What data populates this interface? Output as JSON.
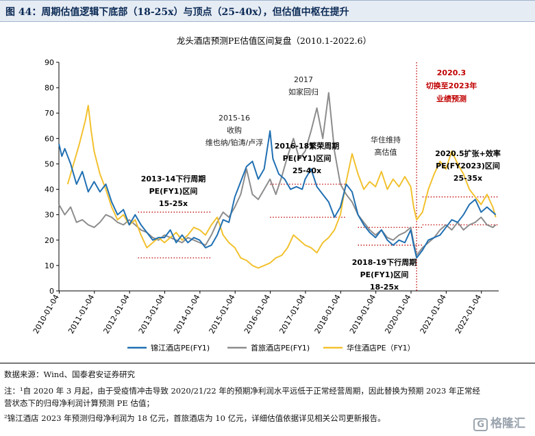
{
  "figure_title": "图 44：周期估值逻辑下底部（18-25x）与顶点（25-40x），但估值中枢在提升",
  "chart_data": {
    "type": "line",
    "title": "龙头酒店预测PE估值区间复盘（2010.1-2022.6）",
    "xlabel": "",
    "ylabel": "",
    "ylim": [
      0,
      90
    ],
    "yticks": [
      0,
      10,
      20,
      30,
      40,
      50,
      60,
      70,
      80,
      90
    ],
    "xlim": [
      "2010-01",
      "2022-07"
    ],
    "xticks": [
      "2010-01-04",
      "2011-01-04",
      "2012-01-04",
      "2013-01-04",
      "2014-01-04",
      "2015-01-04",
      "2016-01-04",
      "2017-01-04",
      "2018-01-04",
      "2019-01-04",
      "2020-01-04",
      "2021-01-04",
      "2022-01-04"
    ],
    "grid": false,
    "legend_position": "bottom",
    "series": [
      {
        "name": "锦江酒店PE(FY1)",
        "color": "#1f6fb2",
        "points": [
          [
            "2010-01",
            58
          ],
          [
            "2010-02",
            53
          ],
          [
            "2010-03",
            56
          ],
          [
            "2010-05",
            50
          ],
          [
            "2010-07",
            42
          ],
          [
            "2010-09",
            47
          ],
          [
            "2010-11",
            39
          ],
          [
            "2011-01",
            43
          ],
          [
            "2011-03",
            39
          ],
          [
            "2011-05",
            42
          ],
          [
            "2011-07",
            35
          ],
          [
            "2011-09",
            30
          ],
          [
            "2011-11",
            32
          ],
          [
            "2012-01",
            26
          ],
          [
            "2012-03",
            30
          ],
          [
            "2012-05",
            26
          ],
          [
            "2012-07",
            23
          ],
          [
            "2012-09",
            20
          ],
          [
            "2012-11",
            21
          ],
          [
            "2013-01",
            21
          ],
          [
            "2013-03",
            24
          ],
          [
            "2013-05",
            19
          ],
          [
            "2013-07",
            22
          ],
          [
            "2013-09",
            19
          ],
          [
            "2013-11",
            21
          ],
          [
            "2014-01",
            20
          ],
          [
            "2014-03",
            17
          ],
          [
            "2014-05",
            18
          ],
          [
            "2014-07",
            22
          ],
          [
            "2014-09",
            28
          ],
          [
            "2014-11",
            27
          ],
          [
            "2015-01",
            37
          ],
          [
            "2015-03",
            43
          ],
          [
            "2015-05",
            49
          ],
          [
            "2015-07",
            51
          ],
          [
            "2015-09",
            44
          ],
          [
            "2015-11",
            48
          ],
          [
            "2016-01",
            63
          ],
          [
            "2016-02",
            52
          ],
          [
            "2016-04",
            46
          ],
          [
            "2016-06",
            44
          ],
          [
            "2016-08",
            40
          ],
          [
            "2016-10",
            41
          ],
          [
            "2016-12",
            40
          ],
          [
            "2017-01",
            44
          ],
          [
            "2017-03",
            48
          ],
          [
            "2017-05",
            41
          ],
          [
            "2017-07",
            38
          ],
          [
            "2017-09",
            35
          ],
          [
            "2017-11",
            29
          ],
          [
            "2018-01",
            33
          ],
          [
            "2018-03",
            42
          ],
          [
            "2018-05",
            39
          ],
          [
            "2018-07",
            30
          ],
          [
            "2018-09",
            26
          ],
          [
            "2018-11",
            23
          ],
          [
            "2019-01",
            21
          ],
          [
            "2019-03",
            24
          ],
          [
            "2019-05",
            20
          ],
          [
            "2019-07",
            18
          ],
          [
            "2019-09",
            20
          ],
          [
            "2019-11",
            19
          ],
          [
            "2020-01",
            24
          ],
          [
            "2020-02",
            18
          ],
          [
            "2020-03",
            13
          ],
          [
            "2020-05",
            16
          ],
          [
            "2020-07",
            20
          ],
          [
            "2020-09",
            21
          ],
          [
            "2020-11",
            22
          ],
          [
            "2021-01",
            25
          ],
          [
            "2021-03",
            28
          ],
          [
            "2021-05",
            27
          ],
          [
            "2021-07",
            30
          ],
          [
            "2021-09",
            34
          ],
          [
            "2021-11",
            36
          ],
          [
            "2022-01",
            31
          ],
          [
            "2022-03",
            33
          ],
          [
            "2022-05",
            31
          ],
          [
            "2022-06",
            30
          ]
        ]
      },
      {
        "name": "首旅酒店PE(FY1)",
        "color": "#8c8c8c",
        "points": [
          [
            "2010-01",
            34
          ],
          [
            "2010-03",
            30
          ],
          [
            "2010-05",
            33
          ],
          [
            "2010-07",
            27
          ],
          [
            "2010-09",
            28
          ],
          [
            "2010-11",
            26
          ],
          [
            "2011-01",
            25
          ],
          [
            "2011-03",
            27
          ],
          [
            "2011-05",
            30
          ],
          [
            "2011-07",
            29
          ],
          [
            "2011-09",
            27
          ],
          [
            "2011-11",
            26
          ],
          [
            "2012-01",
            28
          ],
          [
            "2012-03",
            26
          ],
          [
            "2012-05",
            24
          ],
          [
            "2012-07",
            23
          ],
          [
            "2012-09",
            21
          ],
          [
            "2012-11",
            20
          ],
          [
            "2013-01",
            22
          ],
          [
            "2013-03",
            21
          ],
          [
            "2013-05",
            20
          ],
          [
            "2013-07",
            19
          ],
          [
            "2013-09",
            21
          ],
          [
            "2013-11",
            20
          ],
          [
            "2014-01",
            19
          ],
          [
            "2014-03",
            18
          ],
          [
            "2014-05",
            22
          ],
          [
            "2014-07",
            27
          ],
          [
            "2014-09",
            31
          ],
          [
            "2014-11",
            29
          ],
          [
            "2015-01",
            33
          ],
          [
            "2015-03",
            38
          ],
          [
            "2015-05",
            48
          ],
          [
            "2015-07",
            38
          ],
          [
            "2015-09",
            36
          ],
          [
            "2015-11",
            40
          ],
          [
            "2016-01",
            44
          ],
          [
            "2016-03",
            38
          ],
          [
            "2016-05",
            45
          ],
          [
            "2016-07",
            53
          ],
          [
            "2016-09",
            60
          ],
          [
            "2016-11",
            52
          ],
          [
            "2017-01",
            55
          ],
          [
            "2017-03",
            63
          ],
          [
            "2017-05",
            72
          ],
          [
            "2017-07",
            60
          ],
          [
            "2017-09",
            78
          ],
          [
            "2017-11",
            55
          ],
          [
            "2018-01",
            42
          ],
          [
            "2018-03",
            38
          ],
          [
            "2018-05",
            35
          ],
          [
            "2018-07",
            30
          ],
          [
            "2018-09",
            27
          ],
          [
            "2018-11",
            24
          ],
          [
            "2019-01",
            22
          ],
          [
            "2019-03",
            24
          ],
          [
            "2019-05",
            21
          ],
          [
            "2019-07",
            20
          ],
          [
            "2019-09",
            22
          ],
          [
            "2019-11",
            23
          ],
          [
            "2020-01",
            25
          ],
          [
            "2020-02",
            19
          ],
          [
            "2020-03",
            14
          ],
          [
            "2020-05",
            17
          ],
          [
            "2020-07",
            19
          ],
          [
            "2020-09",
            21
          ],
          [
            "2020-11",
            24
          ],
          [
            "2021-01",
            26
          ],
          [
            "2021-03",
            24
          ],
          [
            "2021-05",
            27
          ],
          [
            "2021-07",
            24
          ],
          [
            "2021-09",
            26
          ],
          [
            "2021-11",
            27
          ],
          [
            "2022-01",
            29
          ],
          [
            "2022-03",
            26
          ],
          [
            "2022-05",
            25
          ],
          [
            "2022-06",
            26
          ]
        ]
      },
      {
        "name": "华住酒店PE（FY1）",
        "color": "#f2c12e",
        "points": [
          [
            "2010-04",
            42
          ],
          [
            "2010-06",
            50
          ],
          [
            "2010-08",
            58
          ],
          [
            "2010-10",
            67
          ],
          [
            "2010-11",
            73
          ],
          [
            "2010-12",
            63
          ],
          [
            "2011-01",
            55
          ],
          [
            "2011-03",
            46
          ],
          [
            "2011-05",
            40
          ],
          [
            "2011-07",
            33
          ],
          [
            "2011-09",
            28
          ],
          [
            "2011-11",
            30
          ],
          [
            "2012-01",
            26
          ],
          [
            "2012-03",
            28
          ],
          [
            "2012-05",
            22
          ],
          [
            "2012-07",
            17
          ],
          [
            "2012-09",
            19
          ],
          [
            "2012-11",
            21
          ],
          [
            "2013-01",
            19
          ],
          [
            "2013-03",
            21
          ],
          [
            "2013-05",
            23
          ],
          [
            "2013-07",
            20
          ],
          [
            "2013-09",
            22
          ],
          [
            "2013-11",
            25
          ],
          [
            "2014-01",
            24
          ],
          [
            "2014-03",
            22
          ],
          [
            "2014-05",
            26
          ],
          [
            "2014-07",
            29
          ],
          [
            "2014-09",
            22
          ],
          [
            "2014-11",
            19
          ],
          [
            "2015-01",
            17
          ],
          [
            "2015-03",
            13
          ],
          [
            "2015-05",
            12
          ],
          [
            "2015-07",
            10
          ],
          [
            "2015-09",
            9
          ],
          [
            "2015-11",
            10
          ],
          [
            "2016-01",
            11
          ],
          [
            "2016-03",
            13
          ],
          [
            "2016-05",
            14
          ],
          [
            "2016-07",
            17
          ],
          [
            "2016-09",
            22
          ],
          [
            "2016-11",
            20
          ],
          [
            "2017-01",
            18
          ],
          [
            "2017-03",
            17
          ],
          [
            "2017-05",
            15
          ],
          [
            "2017-07",
            19
          ],
          [
            "2017-09",
            21
          ],
          [
            "2017-11",
            24
          ],
          [
            "2018-01",
            30
          ],
          [
            "2018-03",
            43
          ],
          [
            "2018-05",
            54
          ],
          [
            "2018-07",
            46
          ],
          [
            "2018-09",
            40
          ],
          [
            "2018-11",
            43
          ],
          [
            "2019-01",
            41
          ],
          [
            "2019-03",
            47
          ],
          [
            "2019-05",
            40
          ],
          [
            "2019-07",
            44
          ],
          [
            "2019-09",
            41
          ],
          [
            "2019-11",
            45
          ],
          [
            "2020-01",
            41
          ],
          [
            "2020-02",
            33
          ],
          [
            "2020-03",
            28
          ],
          [
            "2020-05",
            31
          ],
          [
            "2020-07",
            40
          ],
          [
            "2020-09",
            46
          ],
          [
            "2020-11",
            51
          ],
          [
            "2021-01",
            48
          ],
          [
            "2021-03",
            55
          ],
          [
            "2021-05",
            50
          ],
          [
            "2021-07",
            46
          ],
          [
            "2021-09",
            40
          ],
          [
            "2021-11",
            37
          ],
          [
            "2022-01",
            34
          ],
          [
            "2022-03",
            38
          ],
          [
            "2022-05",
            33
          ],
          [
            "2022-06",
            29
          ]
        ]
      }
    ],
    "annotations": {
      "period_2013": [
        "2013-14下行周期",
        "PE(FY1)区间",
        "15-25x"
      ],
      "period_2015": [
        "2015-16",
        "收购",
        "维也纳/铂涛/卢浮"
      ],
      "period_2016": [
        "2016-18繁荣周期",
        "PE(FY1)区间",
        "25-40x"
      ],
      "period_2017": [
        "2017",
        "如家回归"
      ],
      "period_huazhu": [
        "华住维持",
        "高估值"
      ],
      "period_2018": [
        "2018-19下行周期",
        "PE(FY1)区间",
        "18-25x"
      ],
      "period_2020_note": [
        "2020.3",
        "切换至2023年",
        "业绩预测"
      ],
      "period_2020_5": [
        "2020.5扩张+效率",
        "PE(FY2023)区间",
        "25-35x"
      ]
    },
    "reference_ranges": [
      {
        "from": "2012-04",
        "to": "2014-05",
        "value": 13,
        "color": "#c00000"
      },
      {
        "from": "2012-04",
        "to": "2014-05",
        "value": 31,
        "color": "#c00000"
      },
      {
        "from": "2016-01",
        "to": "2018-03",
        "value": 29,
        "color": "#c00000"
      },
      {
        "from": "2016-01",
        "to": "2018-03",
        "value": 42,
        "color": "#c00000"
      },
      {
        "from": "2018-07",
        "to": "2020-05",
        "value": 18,
        "color": "#c00000"
      },
      {
        "from": "2018-07",
        "to": "2020-05",
        "value": 25,
        "color": "#c00000"
      },
      {
        "from": "2020-05",
        "to": "2022-07",
        "value": 26,
        "color": "#c00000"
      },
      {
        "from": "2020-05",
        "to": "2022-07",
        "value": 37,
        "color": "#c00000"
      }
    ],
    "marker": {
      "date": "2020-03",
      "color": "#c00000"
    }
  },
  "footnotes": {
    "source": "数据来源：Wind、国泰君安证券研究",
    "note1_line1": "注：¹自 2020 年 3 月起，由于受疫情冲击导致 2020/21/22 年的预期净利润水平远低于正常经营周期，因此替换为预期 2023 年正常经",
    "note1_line2": "营状态下的归母净利润计算预测 PE 估值；",
    "note2": "²锦江酒店 2023 年预测归母净利润为 18 亿元，首旅酒店为 10 亿元，详细估值依据详见相关公司更新报告。"
  },
  "watermark": {
    "box": "G",
    "text": "格隆汇"
  }
}
